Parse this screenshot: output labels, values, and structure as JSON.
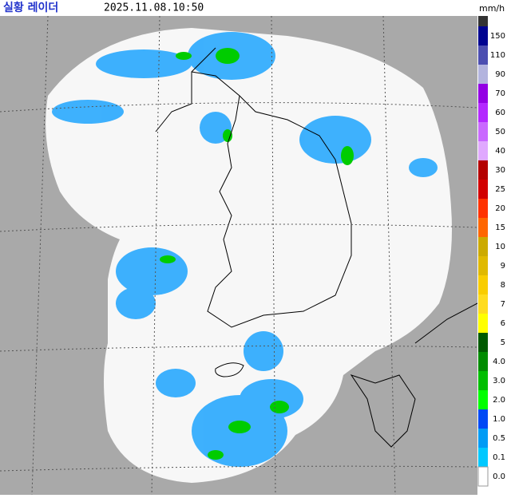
{
  "header": {
    "title": "실황 레이더",
    "time": "2025.11.08.10:50",
    "unit": "mm/h"
  },
  "legend": {
    "items": [
      {
        "label": "150",
        "color": "#000390"
      },
      {
        "label": "110",
        "color": "#4c4eb1"
      },
      {
        "label": "90",
        "color": "#b3b4de"
      },
      {
        "label": "70",
        "color": "#9300e4"
      },
      {
        "label": "60",
        "color": "#b329ff"
      },
      {
        "label": "50",
        "color": "#c969ff"
      },
      {
        "label": "40",
        "color": "#e0a9ff"
      },
      {
        "label": "30",
        "color": "#b40000"
      },
      {
        "label": "25",
        "color": "#d20000"
      },
      {
        "label": "20",
        "color": "#ff3200"
      },
      {
        "label": "15",
        "color": "#ff6600"
      },
      {
        "label": "10",
        "color": "#ccaa00"
      },
      {
        "label": "9",
        "color": "#e0b900"
      },
      {
        "label": "8",
        "color": "#f9cd00"
      },
      {
        "label": "7",
        "color": "#ffdc1f"
      },
      {
        "label": "6",
        "color": "#ffff00"
      },
      {
        "label": "5",
        "color": "#005a00"
      },
      {
        "label": "4.0",
        "color": "#008c00"
      },
      {
        "label": "3.0",
        "color": "#00be00"
      },
      {
        "label": "2.0",
        "color": "#00ff00"
      },
      {
        "label": "1.0",
        "color": "#0049f5"
      },
      {
        "label": "0.5",
        "color": "#009bf5"
      },
      {
        "label": "0.1",
        "color": "#00c8ff"
      },
      {
        "label": "0.0",
        "color": "#ffffff"
      }
    ]
  }
}
